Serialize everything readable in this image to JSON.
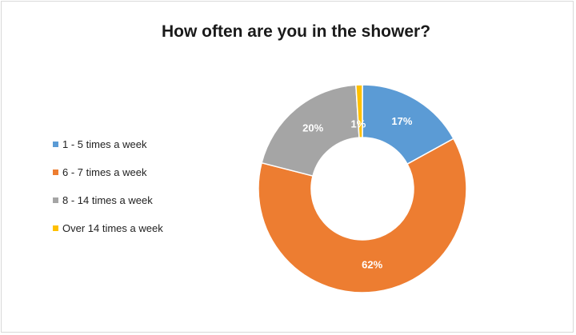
{
  "chart_data": {
    "type": "pie",
    "variant": "donut",
    "title": "How often are you in the shower?",
    "legend_position": "left",
    "slices": [
      {
        "label": "1 - 5 times a week",
        "value": 17,
        "value_label": "17%",
        "color": "#5b9bd5"
      },
      {
        "label": "6 - 7 times a week",
        "value": 62,
        "value_label": "62%",
        "color": "#ed7d31"
      },
      {
        "label": "8 - 14 times a week",
        "value": 20,
        "value_label": "20%",
        "color": "#a5a5a5"
      },
      {
        "label": "Over 14 times a week",
        "value": 1,
        "value_label": "1%",
        "color": "#ffc000"
      }
    ]
  }
}
